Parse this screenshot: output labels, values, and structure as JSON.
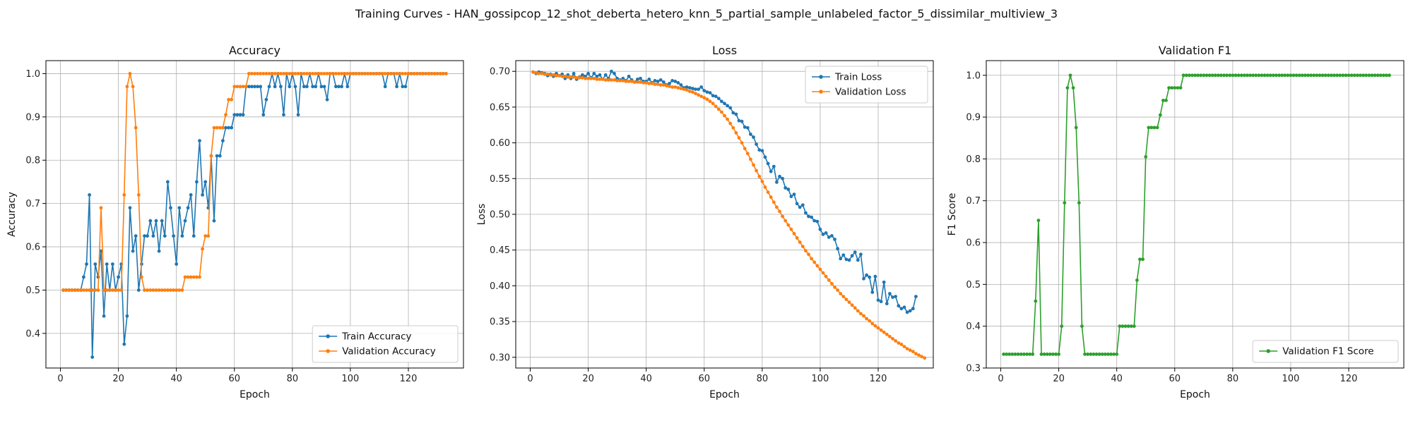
{
  "title": "Training Curves - HAN_gossipcop_12_shot_deberta_hetero_knn_5_partial_sample_unlabeled_factor_5_dissimilar_multiview_3",
  "chart_data": [
    {
      "type": "line",
      "title": "Accuracy",
      "xlabel": "Epoch",
      "ylabel": "Accuracy",
      "xlim": [
        -5,
        139
      ],
      "ylim": [
        0.32,
        1.03
      ],
      "xticks": [
        0,
        20,
        40,
        60,
        80,
        100,
        120
      ],
      "yticks": [
        0.4,
        0.5,
        0.6,
        0.7,
        0.8,
        0.9,
        1.0
      ],
      "ytick_labels": [
        "0.4",
        "0.5",
        "0.6",
        "0.7",
        "0.8",
        "0.9",
        "1.0"
      ],
      "grid": true,
      "legend_position": "lower-right",
      "series": [
        {
          "name": "Train Accuracy",
          "color": "#1f77b4",
          "x_start": 1,
          "values": [
            0.5,
            0.5,
            0.5,
            0.5,
            0.5,
            0.5,
            0.5,
            0.53,
            0.56,
            0.72,
            0.345,
            0.56,
            0.53,
            0.59,
            0.44,
            0.56,
            0.5,
            0.56,
            0.5,
            0.53,
            0.56,
            0.375,
            0.44,
            0.69,
            0.59,
            0.625,
            0.5,
            0.56,
            0.625,
            0.625,
            0.66,
            0.625,
            0.66,
            0.59,
            0.66,
            0.625,
            0.75,
            0.69,
            0.625,
            0.56,
            0.69,
            0.625,
            0.66,
            0.69,
            0.72,
            0.625,
            0.75,
            0.845,
            0.72,
            0.75,
            0.69,
            0.81,
            0.66,
            0.81,
            0.81,
            0.845,
            0.875,
            0.875,
            0.875,
            0.905,
            0.905,
            0.905,
            0.905,
            0.97,
            0.97,
            0.97,
            0.97,
            0.97,
            0.97,
            0.905,
            0.94,
            0.97,
            1.0,
            0.97,
            1.0,
            0.97,
            0.905,
            1.0,
            0.97,
            1.0,
            0.97,
            0.905,
            1.0,
            0.97,
            0.97,
            1.0,
            0.97,
            0.97,
            1.0,
            0.97,
            0.97,
            0.94,
            1.0,
            1.0,
            0.97,
            0.97,
            0.97,
            1.0,
            0.97,
            1.0,
            1.0,
            1.0,
            1.0,
            1.0,
            1.0,
            1.0,
            1.0,
            1.0,
            1.0,
            1.0,
            1.0,
            0.97,
            1.0,
            1.0,
            1.0,
            0.97,
            1.0,
            0.97,
            0.97,
            1.0,
            1.0,
            1.0,
            1.0,
            1.0,
            1.0,
            1.0,
            1.0,
            1.0,
            1.0,
            1.0,
            1.0,
            1.0,
            1.0
          ]
        },
        {
          "name": "Validation Accuracy",
          "color": "#ff7f0e",
          "x_start": 1,
          "values": [
            0.5,
            0.5,
            0.5,
            0.5,
            0.5,
            0.5,
            0.5,
            0.5,
            0.5,
            0.5,
            0.5,
            0.5,
            0.5,
            0.69,
            0.5,
            0.5,
            0.5,
            0.5,
            0.5,
            0.5,
            0.5,
            0.72,
            0.97,
            1.0,
            0.97,
            0.875,
            0.72,
            0.53,
            0.5,
            0.5,
            0.5,
            0.5,
            0.5,
            0.5,
            0.5,
            0.5,
            0.5,
            0.5,
            0.5,
            0.5,
            0.5,
            0.5,
            0.53,
            0.53,
            0.53,
            0.53,
            0.53,
            0.53,
            0.595,
            0.625,
            0.625,
            0.81,
            0.875,
            0.875,
            0.875,
            0.875,
            0.905,
            0.94,
            0.94,
            0.97,
            0.97,
            0.97,
            0.97,
            0.97,
            1.0,
            1.0,
            1.0,
            1.0,
            1.0,
            1.0,
            1.0,
            1.0,
            1.0,
            1.0,
            1.0,
            1.0,
            1.0,
            1.0,
            1.0,
            1.0,
            1.0,
            1.0,
            1.0,
            1.0,
            1.0,
            1.0,
            1.0,
            1.0,
            1.0,
            1.0,
            1.0,
            1.0,
            1.0,
            1.0,
            1.0,
            1.0,
            1.0,
            1.0,
            1.0,
            1.0,
            1.0,
            1.0,
            1.0,
            1.0,
            1.0,
            1.0,
            1.0,
            1.0,
            1.0,
            1.0,
            1.0,
            1.0,
            1.0,
            1.0,
            1.0,
            1.0,
            1.0,
            1.0,
            1.0,
            1.0,
            1.0,
            1.0,
            1.0,
            1.0,
            1.0,
            1.0,
            1.0,
            1.0,
            1.0,
            1.0,
            1.0,
            1.0,
            1.0
          ]
        }
      ]
    },
    {
      "type": "line",
      "title": "Loss",
      "xlabel": "Epoch",
      "ylabel": "Loss",
      "xlim": [
        -5,
        139
      ],
      "ylim": [
        0.285,
        0.715
      ],
      "xticks": [
        0,
        20,
        40,
        60,
        80,
        100,
        120
      ],
      "yticks": [
        0.3,
        0.35,
        0.4,
        0.45,
        0.5,
        0.55,
        0.6,
        0.65,
        0.7
      ],
      "ytick_labels": [
        "0.30",
        "0.35",
        "0.40",
        "0.45",
        "0.50",
        "0.55",
        "0.60",
        "0.65",
        "0.70"
      ],
      "grid": true,
      "legend_position": "upper-right",
      "series": [
        {
          "name": "Train Loss",
          "color": "#1f77b4",
          "x_start": 1,
          "values": [
            0.699,
            0.697,
            0.699,
            0.698,
            0.697,
            0.694,
            0.696,
            0.693,
            0.697,
            0.694,
            0.696,
            0.69,
            0.695,
            0.69,
            0.697,
            0.689,
            0.692,
            0.695,
            0.693,
            0.697,
            0.691,
            0.697,
            0.693,
            0.695,
            0.689,
            0.695,
            0.69,
            0.7,
            0.697,
            0.69,
            0.688,
            0.69,
            0.687,
            0.693,
            0.688,
            0.685,
            0.689,
            0.69,
            0.686,
            0.686,
            0.689,
            0.684,
            0.687,
            0.686,
            0.688,
            0.685,
            0.681,
            0.683,
            0.687,
            0.686,
            0.684,
            0.681,
            0.677,
            0.678,
            0.677,
            0.676,
            0.675,
            0.675,
            0.678,
            0.673,
            0.671,
            0.67,
            0.666,
            0.665,
            0.662,
            0.658,
            0.655,
            0.652,
            0.649,
            0.642,
            0.64,
            0.631,
            0.63,
            0.622,
            0.621,
            0.612,
            0.608,
            0.598,
            0.59,
            0.589,
            0.58,
            0.571,
            0.56,
            0.567,
            0.545,
            0.553,
            0.55,
            0.537,
            0.535,
            0.525,
            0.528,
            0.515,
            0.51,
            0.513,
            0.502,
            0.497,
            0.496,
            0.491,
            0.49,
            0.479,
            0.472,
            0.474,
            0.468,
            0.47,
            0.465,
            0.452,
            0.438,
            0.443,
            0.437,
            0.436,
            0.442,
            0.447,
            0.436,
            0.444,
            0.41,
            0.415,
            0.412,
            0.391,
            0.413,
            0.38,
            0.378,
            0.405,
            0.375,
            0.389,
            0.384,
            0.385,
            0.372,
            0.368,
            0.37,
            0.363,
            0.365,
            0.368,
            0.385
          ]
        },
        {
          "name": "Validation Loss",
          "color": "#ff7f0e",
          "x_start": 1,
          "values": [
            0.699,
            0.698,
            0.697,
            0.697,
            0.696,
            0.696,
            0.695,
            0.695,
            0.694,
            0.694,
            0.693,
            0.693,
            0.692,
            0.692,
            0.692,
            0.691,
            0.691,
            0.691,
            0.69,
            0.69,
            0.69,
            0.69,
            0.689,
            0.689,
            0.689,
            0.688,
            0.688,
            0.688,
            0.688,
            0.687,
            0.687,
            0.687,
            0.686,
            0.686,
            0.686,
            0.685,
            0.685,
            0.685,
            0.684,
            0.684,
            0.683,
            0.683,
            0.682,
            0.682,
            0.681,
            0.681,
            0.68,
            0.679,
            0.678,
            0.678,
            0.677,
            0.676,
            0.675,
            0.674,
            0.672,
            0.671,
            0.669,
            0.667,
            0.665,
            0.663,
            0.661,
            0.658,
            0.655,
            0.651,
            0.647,
            0.643,
            0.638,
            0.633,
            0.627,
            0.621,
            0.614,
            0.607,
            0.6,
            0.592,
            0.585,
            0.577,
            0.569,
            0.561,
            0.553,
            0.546,
            0.538,
            0.531,
            0.524,
            0.517,
            0.51,
            0.504,
            0.497,
            0.491,
            0.485,
            0.479,
            0.473,
            0.467,
            0.461,
            0.455,
            0.449,
            0.444,
            0.438,
            0.433,
            0.428,
            0.423,
            0.418,
            0.413,
            0.408,
            0.403,
            0.398,
            0.394,
            0.389,
            0.385,
            0.381,
            0.377,
            0.373,
            0.369,
            0.365,
            0.361,
            0.358,
            0.354,
            0.351,
            0.347,
            0.344,
            0.341,
            0.338,
            0.335,
            0.332,
            0.329,
            0.326,
            0.323,
            0.32,
            0.318,
            0.315,
            0.312,
            0.31,
            0.308,
            0.305,
            0.303,
            0.301,
            0.299
          ]
        }
      ]
    },
    {
      "type": "line",
      "title": "Validation F1",
      "xlabel": "Epoch",
      "ylabel": "F1 Score",
      "xlim": [
        -5,
        139
      ],
      "ylim": [
        0.3,
        1.035
      ],
      "xticks": [
        0,
        20,
        40,
        60,
        80,
        100,
        120
      ],
      "yticks": [
        0.3,
        0.4,
        0.5,
        0.6,
        0.7,
        0.8,
        0.9,
        1.0
      ],
      "ytick_labels": [
        "0.3",
        "0.4",
        "0.5",
        "0.6",
        "0.7",
        "0.8",
        "0.9",
        "1.0"
      ],
      "grid": true,
      "legend_position": "lower-right",
      "series": [
        {
          "name": "Validation F1 Score",
          "color": "#2ca02c",
          "x_start": 1,
          "values": [
            0.333,
            0.333,
            0.333,
            0.333,
            0.333,
            0.333,
            0.333,
            0.333,
            0.333,
            0.333,
            0.333,
            0.46,
            0.653,
            0.333,
            0.333,
            0.333,
            0.333,
            0.333,
            0.333,
            0.333,
            0.4,
            0.695,
            0.97,
            1.0,
            0.97,
            0.875,
            0.695,
            0.4,
            0.333,
            0.333,
            0.333,
            0.333,
            0.333,
            0.333,
            0.333,
            0.333,
            0.333,
            0.333,
            0.333,
            0.333,
            0.4,
            0.4,
            0.4,
            0.4,
            0.4,
            0.4,
            0.51,
            0.56,
            0.56,
            0.805,
            0.875,
            0.875,
            0.875,
            0.875,
            0.905,
            0.94,
            0.94,
            0.97,
            0.97,
            0.97,
            0.97,
            0.97,
            1.0,
            1.0,
            1.0,
            1.0,
            1.0,
            1.0,
            1.0,
            1.0,
            1.0,
            1.0,
            1.0,
            1.0,
            1.0,
            1.0,
            1.0,
            1.0,
            1.0,
            1.0,
            1.0,
            1.0,
            1.0,
            1.0,
            1.0,
            1.0,
            1.0,
            1.0,
            1.0,
            1.0,
            1.0,
            1.0,
            1.0,
            1.0,
            1.0,
            1.0,
            1.0,
            1.0,
            1.0,
            1.0,
            1.0,
            1.0,
            1.0,
            1.0,
            1.0,
            1.0,
            1.0,
            1.0,
            1.0,
            1.0,
            1.0,
            1.0,
            1.0,
            1.0,
            1.0,
            1.0,
            1.0,
            1.0,
            1.0,
            1.0,
            1.0,
            1.0,
            1.0,
            1.0,
            1.0,
            1.0,
            1.0,
            1.0,
            1.0,
            1.0,
            1.0,
            1.0,
            1.0,
            1.0
          ]
        }
      ]
    }
  ]
}
